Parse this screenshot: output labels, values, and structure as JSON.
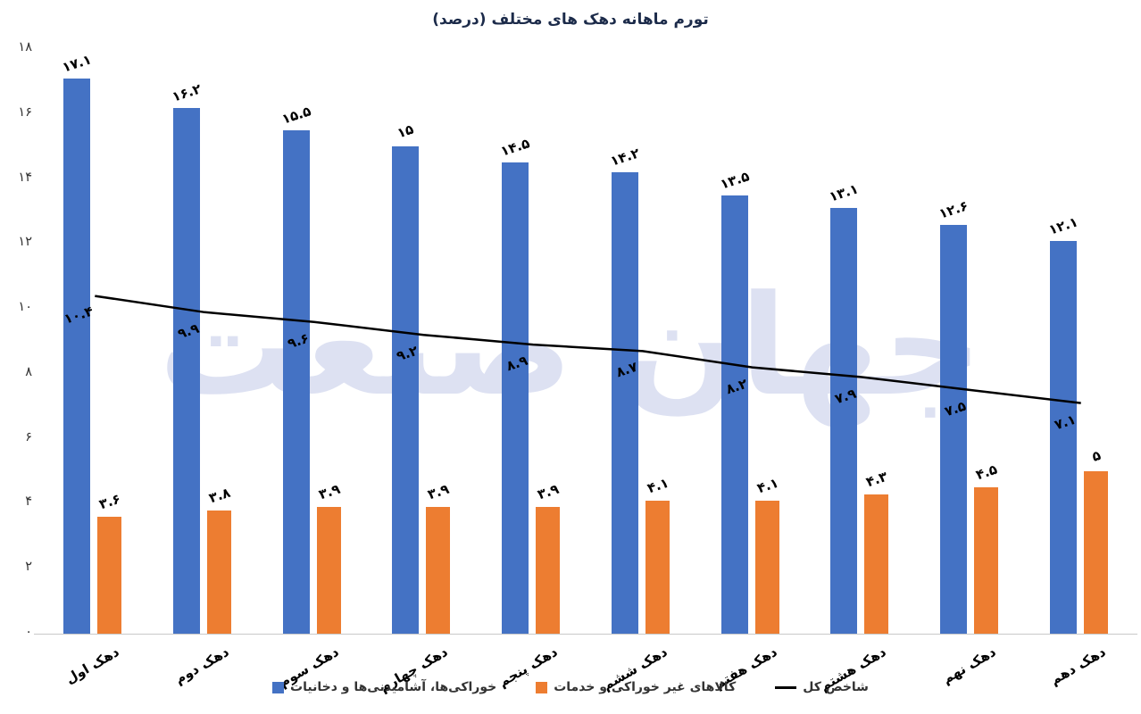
{
  "title": "تورم ماهانه دهک های مختلف (درصد)",
  "watermark": "جهان صنعت",
  "colors": {
    "food_bar": "#4472C4",
    "nonfood_bar": "#ED7D31",
    "total_line": "#000000",
    "watermark": "#dde1f2",
    "axis": "#c9c9c9",
    "title": "#1c2b4a"
  },
  "chart_data": {
    "type": "bar",
    "title": "تورم ماهانه دهک های مختلف (درصد)",
    "categories": [
      "دهک اول",
      "دهک دوم",
      "دهک سوم",
      "دهک چهارم",
      "دهک پنجم",
      "دهک ششم",
      "دهک هفتم",
      "دهک هشتم",
      "دهک نهم",
      "دهک دهم"
    ],
    "series": [
      {
        "name": "خوراکی‌ها، آشامیدنی‌ها و دخانیات",
        "type": "bar",
        "color": "#4472C4",
        "values": [
          17.1,
          16.2,
          15.5,
          15,
          14.5,
          14.2,
          13.5,
          13.1,
          12.6,
          12.1
        ],
        "labels": [
          "۱۷.۱",
          "۱۶.۲",
          "۱۵.۵",
          "۱۵",
          "۱۴.۵",
          "۱۴.۲",
          "۱۳.۵",
          "۱۳.۱",
          "۱۲.۶",
          "۱۲.۱"
        ]
      },
      {
        "name": "کالاهای غیر خوراکی و خدمات",
        "type": "bar",
        "color": "#ED7D31",
        "values": [
          3.6,
          3.8,
          3.9,
          3.9,
          3.9,
          4.1,
          4.1,
          4.3,
          4.5,
          5
        ],
        "labels": [
          "۳.۶",
          "۳.۸",
          "۳.۹",
          "۳.۹",
          "۳.۹",
          "۴.۱",
          "۴.۱",
          "۴.۳",
          "۴.۵",
          "۵"
        ]
      },
      {
        "name": "شاخص کل",
        "type": "line",
        "color": "#000000",
        "values": [
          10.4,
          9.9,
          9.6,
          9.2,
          8.9,
          8.7,
          8.2,
          7.9,
          7.5,
          7.1
        ],
        "labels": [
          "۱۰.۴",
          "۹.۹",
          "۹.۶",
          "۹.۲",
          "۸.۹",
          "۸.۷",
          "۸.۲",
          "۷.۹",
          "۷.۵",
          "۷.۱"
        ]
      }
    ],
    "ylim": [
      0,
      18
    ],
    "ytick_step": 2,
    "yticks_labels": [
      "۰",
      "۲",
      "۴",
      "۶",
      "۸",
      "۱۰",
      "۱۲",
      "۱۴",
      "۱۶",
      "۱۸"
    ],
    "grid": false,
    "legend_position": "bottom"
  },
  "legend": {
    "items": [
      {
        "label": "خوراکی‌ها، آشامیدنی‌ها و دخانیات",
        "swatch": "square",
        "color": "#4472C4"
      },
      {
        "label": "کالاهای غیر خوراکی و خدمات",
        "swatch": "square",
        "color": "#ED7D31"
      },
      {
        "label": "شاخص کل",
        "swatch": "line",
        "color": "#000000"
      }
    ]
  }
}
